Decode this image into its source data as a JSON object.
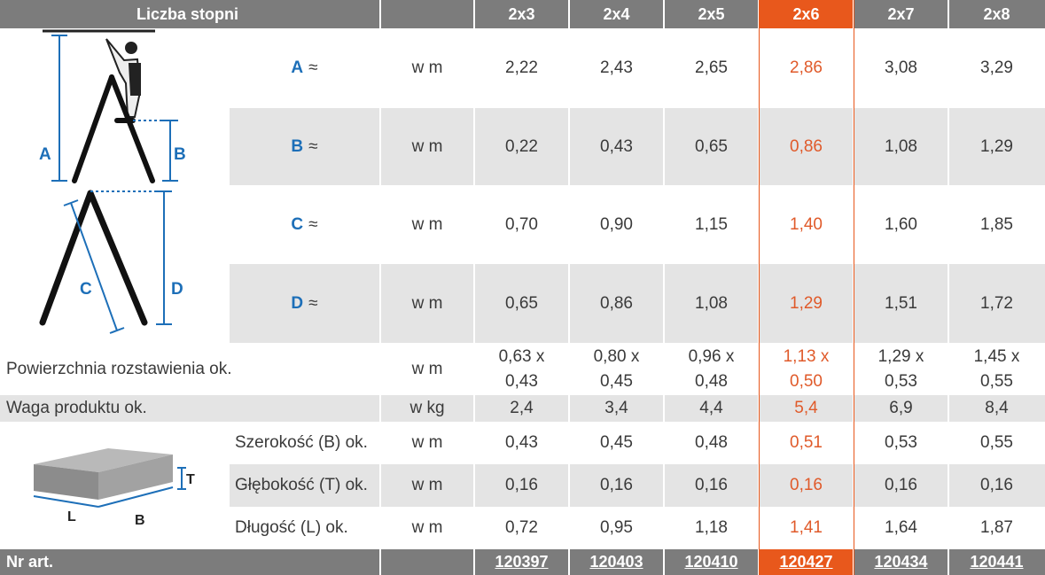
{
  "header": {
    "title": "Liczba stopni",
    "sizes": [
      "2x3",
      "2x4",
      "2x5",
      "2x6",
      "2x7",
      "2x8"
    ],
    "highlight_index": 3,
    "highlight_color": "#e8581c"
  },
  "dims": [
    {
      "label": "A",
      "approx": "≈",
      "unit": "w m",
      "values": [
        "2,22",
        "2,43",
        "2,65",
        "2,86",
        "3,08",
        "3,29"
      ]
    },
    {
      "label": "B",
      "approx": "≈",
      "unit": "w m",
      "values": [
        "0,22",
        "0,43",
        "0,65",
        "0,86",
        "1,08",
        "1,29"
      ]
    },
    {
      "label": "C",
      "approx": "≈",
      "unit": "w m",
      "values": [
        "0,70",
        "0,90",
        "1,15",
        "1,40",
        "1,60",
        "1,85"
      ]
    },
    {
      "label": "D",
      "approx": "≈",
      "unit": "w m",
      "values": [
        "0,65",
        "0,86",
        "1,08",
        "1,29",
        "1,51",
        "1,72"
      ]
    }
  ],
  "footprint": {
    "label": "Powierzchnia rozstawienia ok.",
    "unit": "w m",
    "values": [
      [
        "0,63 x",
        "0,43"
      ],
      [
        "0,80 x",
        "0,45"
      ],
      [
        "0,96 x",
        "0,48"
      ],
      [
        "1,13 x",
        "0,50"
      ],
      [
        "1,29 x",
        "0,53"
      ],
      [
        "1,45 x",
        "0,55"
      ]
    ]
  },
  "weight": {
    "label": "Waga produktu ok.",
    "unit": "w kg",
    "values": [
      "2,4",
      "3,4",
      "4,4",
      "5,4",
      "6,9",
      "8,4"
    ]
  },
  "package": [
    {
      "label": "Szerokość (B) ok.",
      "unit": "w m",
      "values": [
        "0,43",
        "0,45",
        "0,48",
        "0,51",
        "0,53",
        "0,55"
      ]
    },
    {
      "label": "Głębokość (T) ok.",
      "unit": "w m",
      "values": [
        "0,16",
        "0,16",
        "0,16",
        "0,16",
        "0,16",
        "0,16"
      ]
    },
    {
      "label": "Długość (L) ok.",
      "unit": "w m",
      "values": [
        "0,72",
        "0,95",
        "1,18",
        "1,41",
        "1,64",
        "1,87"
      ]
    }
  ],
  "article": {
    "label": "Nr art.",
    "numbers": [
      "120397",
      "120403",
      "120410",
      "120427",
      "120434",
      "120441"
    ]
  },
  "diagram": {
    "ladder_letters": [
      "A",
      "B",
      "C",
      "D"
    ],
    "box_letters": [
      "T",
      "L",
      "B"
    ],
    "line_color": "#1d6fb8"
  }
}
